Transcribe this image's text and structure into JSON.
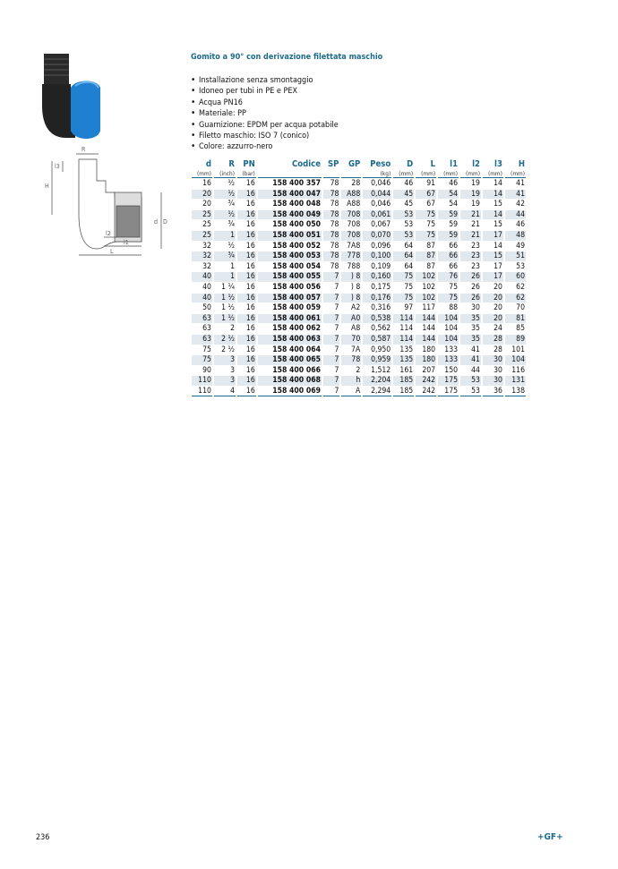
{
  "title": "Gomito a 90° con derivazione filettata maschio",
  "features": [
    "Installazione senza smontaggio",
    "Idoneo per tubi in PE e PEX",
    "Acqua PN16",
    "Materiale: PP",
    "Guarnizione: EPDM per acqua potabile",
    "Filetto maschio: ISO 7 (conico)",
    "Colore: azzurro-nero"
  ],
  "drawing_labels": {
    "R": "R",
    "l3": "l3",
    "H": "H",
    "d": "d",
    "D": "D",
    "l2": "l2",
    "l1": "l1",
    "L": "L"
  },
  "table": {
    "headers": [
      "d",
      "R",
      "PN",
      "Codice",
      "SP",
      "GP",
      "Peso",
      "D",
      "L",
      "l1",
      "l2",
      "l3",
      "H"
    ],
    "units": [
      "(mm)",
      "(inch)",
      "(bar)",
      "",
      "",
      "",
      "(kg)",
      "(mm)",
      "(mm)",
      "(mm)",
      "(mm)",
      "(mm)",
      "(mm)"
    ],
    "rows": [
      [
        "16",
        "½",
        "16",
        "158 400 357",
        "78",
        "28",
        "0,046",
        "46",
        "91",
        "46",
        "19",
        "14",
        "41"
      ],
      [
        "20",
        "½",
        "16",
        "158 400 047",
        "78",
        "A88",
        "0,044",
        "45",
        "67",
        "54",
        "19",
        "14",
        "41"
      ],
      [
        "20",
        "¾",
        "16",
        "158 400 048",
        "78",
        "A88",
        "0,046",
        "45",
        "67",
        "54",
        "19",
        "15",
        "42"
      ],
      [
        "25",
        "½",
        "16",
        "158 400 049",
        "78",
        "708",
        "0,061",
        "53",
        "75",
        "59",
        "21",
        "14",
        "44"
      ],
      [
        "25",
        "¾",
        "16",
        "158 400 050",
        "78",
        "708",
        "0,067",
        "53",
        "75",
        "59",
        "21",
        "15",
        "46"
      ],
      [
        "25",
        "1",
        "16",
        "158 400 051",
        "78",
        "708",
        "0,070",
        "53",
        "75",
        "59",
        "21",
        "17",
        "48"
      ],
      [
        "32",
        "½",
        "16",
        "158 400 052",
        "78",
        "7A8",
        "0,096",
        "64",
        "87",
        "66",
        "23",
        "14",
        "49"
      ],
      [
        "32",
        "¾",
        "16",
        "158 400 053",
        "78",
        "778",
        "0,100",
        "64",
        "87",
        "66",
        "23",
        "15",
        "51"
      ],
      [
        "32",
        "1",
        "16",
        "158 400 054",
        "78",
        "788",
        "0,109",
        "64",
        "87",
        "66",
        "23",
        "17",
        "53"
      ],
      [
        "40",
        "1",
        "16",
        "158 400 055",
        "7",
        ") 8",
        "0,160",
        "75",
        "102",
        "76",
        "26",
        "17",
        "60"
      ],
      [
        "40",
        "1 ¼",
        "16",
        "158 400 056",
        "7",
        ") 8",
        "0,175",
        "75",
        "102",
        "75",
        "26",
        "20",
        "62"
      ],
      [
        "40",
        "1 ½",
        "16",
        "158 400 057",
        "7",
        ") 8",
        "0,176",
        "75",
        "102",
        "75",
        "26",
        "20",
        "62"
      ],
      [
        "50",
        "1 ½",
        "16",
        "158 400 059",
        "7",
        "A2",
        "0,316",
        "97",
        "117",
        "88",
        "30",
        "20",
        "70"
      ],
      [
        "63",
        "1 ½",
        "16",
        "158 400 061",
        "7",
        "A0",
        "0,538",
        "114",
        "144",
        "104",
        "35",
        "20",
        "81"
      ],
      [
        "63",
        "2",
        "16",
        "158 400 062",
        "7",
        "A8",
        "0,562",
        "114",
        "144",
        "104",
        "35",
        "24",
        "85"
      ],
      [
        "63",
        "2 ½",
        "16",
        "158 400 063",
        "7",
        "70",
        "0,587",
        "114",
        "144",
        "104",
        "35",
        "28",
        "89"
      ],
      [
        "75",
        "2 ½",
        "16",
        "158 400 064",
        "7",
        "7A",
        "0,950",
        "135",
        "180",
        "133",
        "41",
        "28",
        "101"
      ],
      [
        "75",
        "3",
        "16",
        "158 400 065",
        "7",
        "78",
        "0,959",
        "135",
        "180",
        "133",
        "41",
        "30",
        "104"
      ],
      [
        "90",
        "3",
        "16",
        "158 400 066",
        "7",
        "2",
        "1,512",
        "161",
        "207",
        "150",
        "44",
        "30",
        "116"
      ],
      [
        "110",
        "3",
        "16",
        "158 400 068",
        "7",
        "h",
        "2,204",
        "185",
        "242",
        "175",
        "53",
        "30",
        "131"
      ],
      [
        "110",
        "4",
        "16",
        "158 400 069",
        "7",
        "A",
        "2,294",
        "185",
        "242",
        "175",
        "53",
        "36",
        "138"
      ]
    ]
  },
  "page_number": "236",
  "logo": "+GF+",
  "colors": {
    "accent": "#1d6a8a",
    "row_shade": "#e1e8ee",
    "product_blue": "#1f7fd0"
  }
}
